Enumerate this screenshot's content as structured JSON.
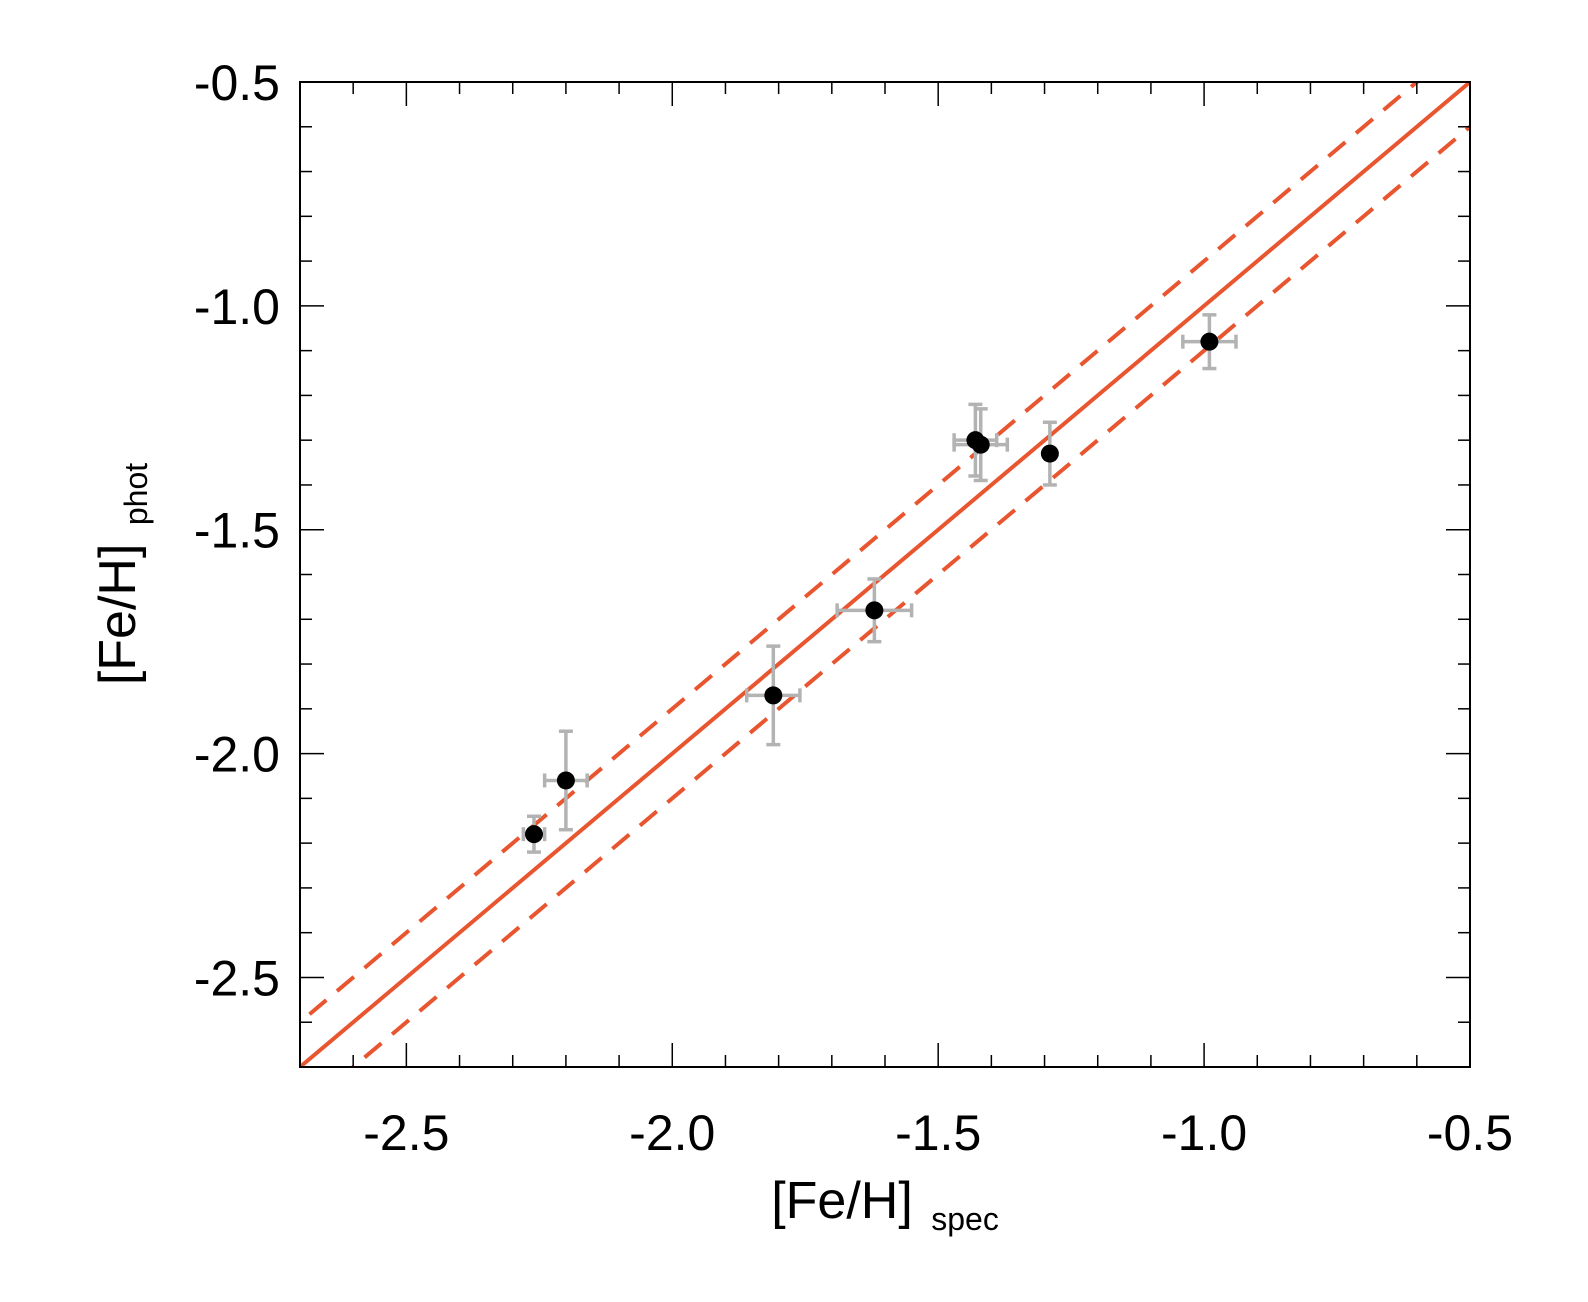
{
  "chart_data": {
    "type": "scatter",
    "xlabel": "[Fe/H]",
    "xlabel_sub": "spec",
    "ylabel": "[Fe/H]",
    "ylabel_sub": "phot",
    "xlim": [
      -2.7,
      -0.5
    ],
    "ylim": [
      -2.7,
      -0.5
    ],
    "x_ticks": [
      -2.5,
      -2.0,
      -1.5,
      -1.0,
      -0.5
    ],
    "x_tick_labels": [
      "-2.5",
      "-2.0",
      "-1.5",
      "-1.0",
      "-0.5"
    ],
    "y_ticks": [
      -2.5,
      -2.0,
      -1.5,
      -1.0,
      -0.5
    ],
    "y_tick_labels": [
      "-2.5",
      "-2.0",
      "-1.5",
      "-1.0",
      "-0.5"
    ],
    "x_minor_step": 0.1,
    "y_minor_step": 0.1,
    "grid": false,
    "colors": {
      "points": "#000000",
      "error_bars": "#b3b3b3",
      "lines": "#e8552f"
    },
    "points": [
      {
        "x": -2.26,
        "y": -2.18,
        "xerr": 0.02,
        "yerr": 0.04
      },
      {
        "x": -2.2,
        "y": -2.06,
        "xerr": 0.04,
        "yerr": 0.11
      },
      {
        "x": -1.81,
        "y": -1.87,
        "xerr": 0.05,
        "yerr": 0.11
      },
      {
        "x": -1.62,
        "y": -1.68,
        "xerr": 0.07,
        "yerr": 0.07
      },
      {
        "x": -1.43,
        "y": -1.3,
        "xerr": 0.04,
        "yerr": 0.08
      },
      {
        "x": -1.42,
        "y": -1.31,
        "xerr": 0.05,
        "yerr": 0.08
      },
      {
        "x": -1.29,
        "y": -1.33,
        "xerr": 0.0,
        "yerr": 0.07
      },
      {
        "x": -0.99,
        "y": -1.08,
        "xerr": 0.05,
        "yerr": 0.06
      }
    ],
    "lines": [
      {
        "style": "solid",
        "slope": 1,
        "intercept": 0.0
      },
      {
        "style": "dashed",
        "slope": 1,
        "intercept": 0.1
      },
      {
        "style": "dashed",
        "slope": 1,
        "intercept": -0.1
      }
    ]
  }
}
